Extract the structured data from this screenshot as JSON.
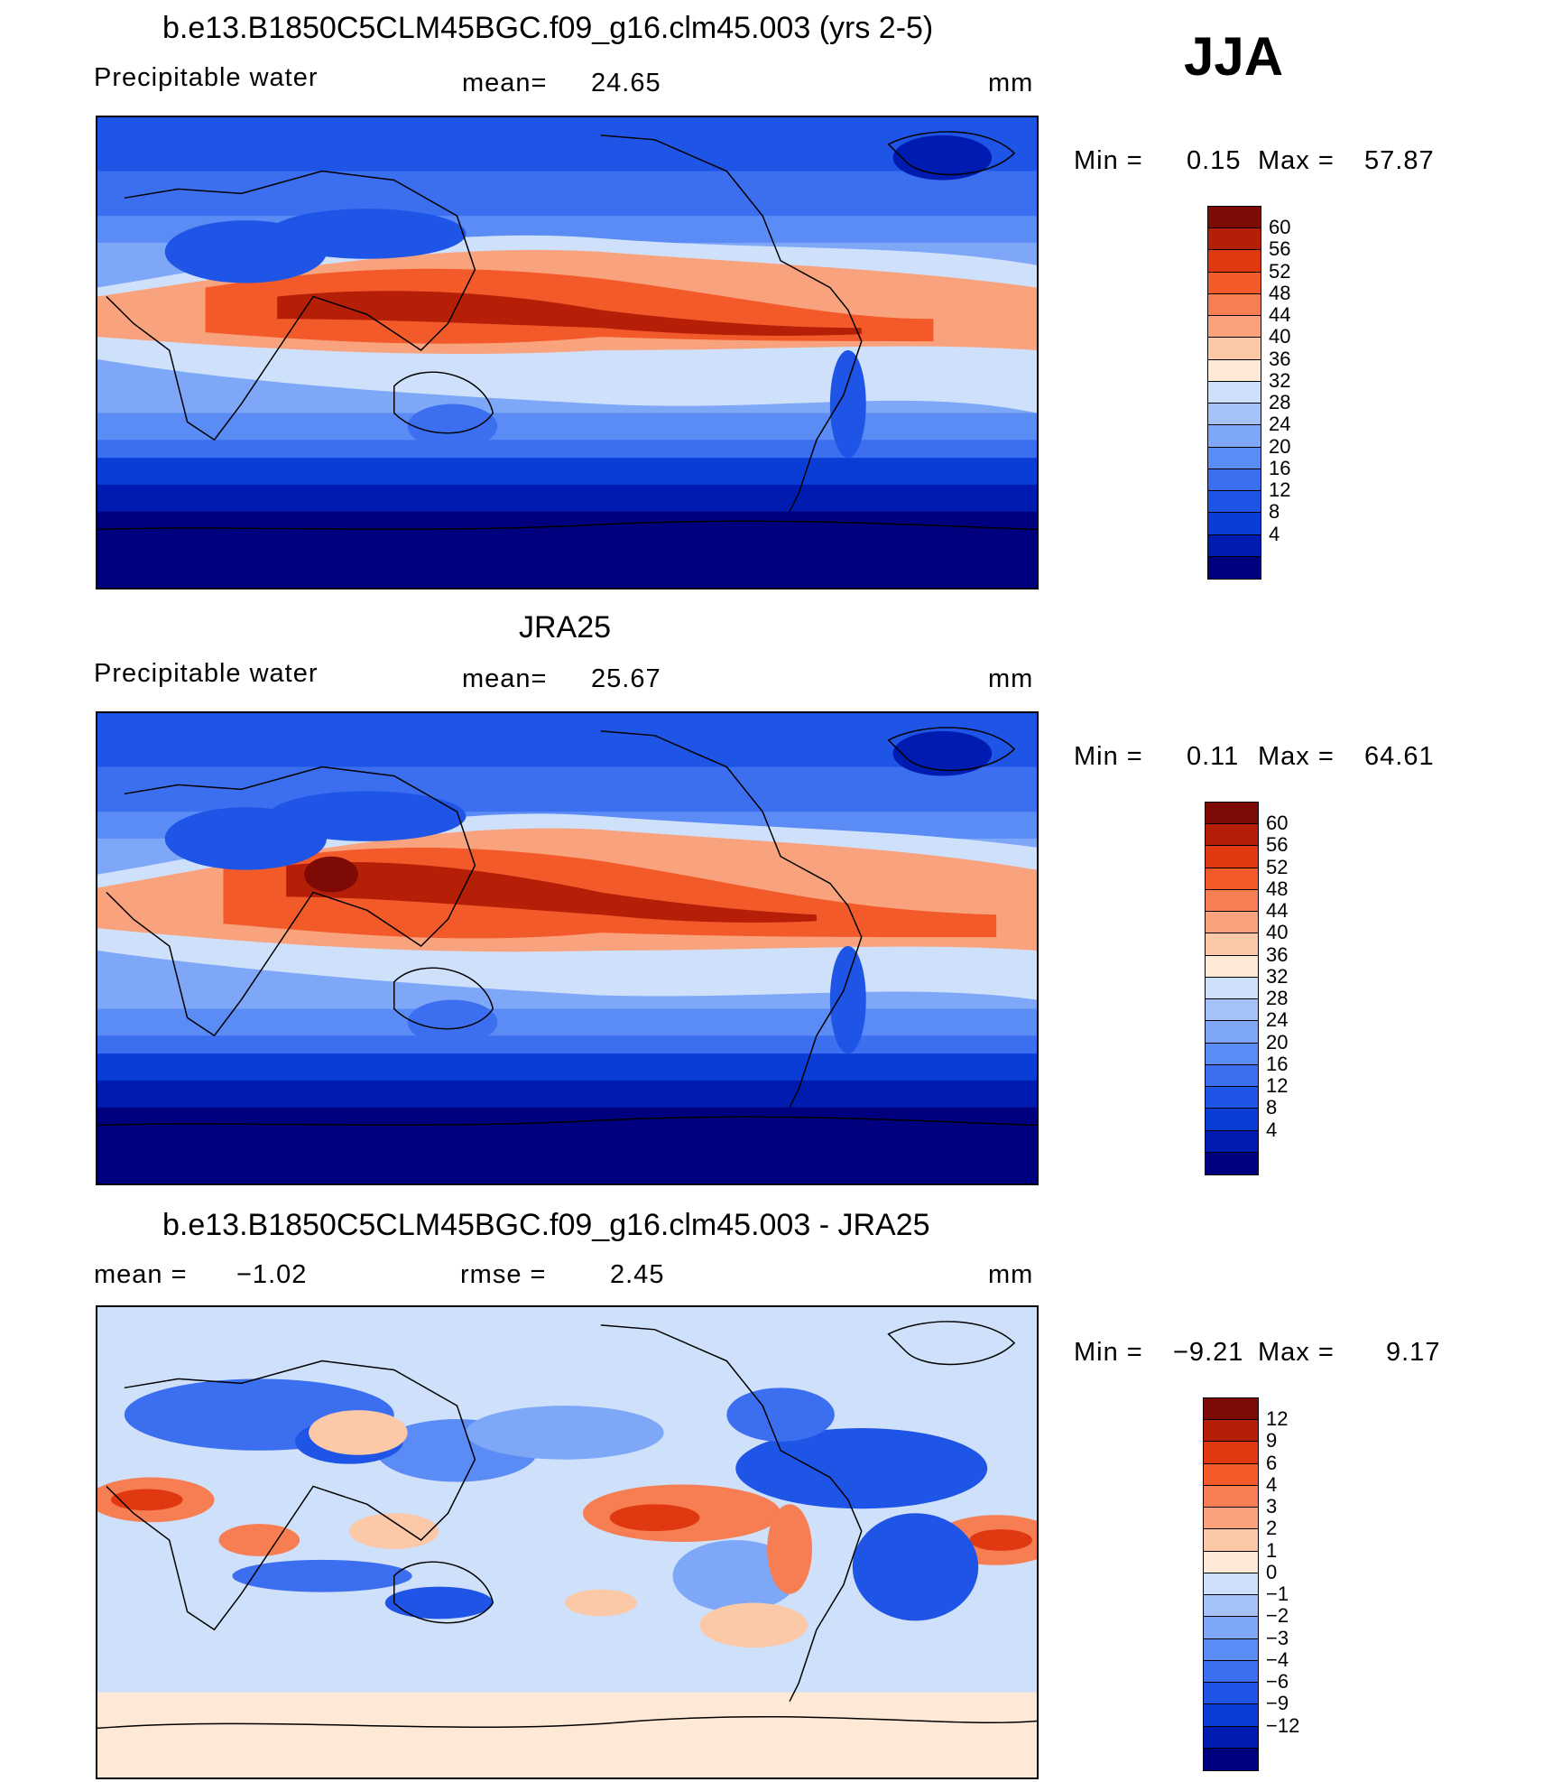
{
  "season": "JJA",
  "units_label": "mm",
  "colors": {
    "full": [
      "#00007e",
      "#001cb0",
      "#0a3dd6",
      "#1f55e6",
      "#3b6ff0",
      "#5b8cf5",
      "#7fa7f7",
      "#a4c2f8",
      "#cfe0fb",
      "#fde9d6",
      "#fbc8a8",
      "#f9a37e",
      "#f67e52",
      "#f25a2a",
      "#e03912",
      "#b51f08",
      "#7e0a05"
    ],
    "diff": [
      "#00007e",
      "#001cb0",
      "#0a3dd6",
      "#1f55e6",
      "#3b6ff0",
      "#5b8cf5",
      "#7fa7f7",
      "#a4c2f8",
      "#cfe0fb",
      "#fde9d6",
      "#fbc8a8",
      "#f9a37e",
      "#f67e52",
      "#f25a2a",
      "#e03912",
      "#b51f08",
      "#7e0a05"
    ]
  },
  "panels": [
    {
      "title": "b.e13.B1850C5CLM45BGC.f09_g16.clm45.003 (yrs 2-5)",
      "variable": "Precipitable  water",
      "stat_label": "mean=",
      "stat_value": "24.65",
      "units": "mm",
      "min_label": "Min  =",
      "min_value": "0.15",
      "max_label": "Max  =",
      "max_value": "57.87",
      "levels": [
        "60",
        "56",
        "52",
        "48",
        "44",
        "40",
        "36",
        "32",
        "28",
        "24",
        "20",
        "16",
        "12",
        "8",
        "4"
      ],
      "scale": "full"
    },
    {
      "title": "JRA25",
      "variable": "Precipitable  water",
      "stat_label": "mean=",
      "stat_value": "25.67",
      "units": "mm",
      "min_label": "Min  =",
      "min_value": "0.11",
      "max_label": "Max  =",
      "max_value": "64.61",
      "levels": [
        "60",
        "56",
        "52",
        "48",
        "44",
        "40",
        "36",
        "32",
        "28",
        "24",
        "20",
        "16",
        "12",
        "8",
        "4"
      ],
      "scale": "full"
    },
    {
      "title": "b.e13.B1850C5CLM45BGC.f09_g16.clm45.003 - JRA25",
      "variable": "mean  =",
      "variable_value": "−1.02",
      "stat_label": "rmse  =",
      "stat_value": "2.45",
      "units": "mm",
      "min_label": "Min  =",
      "min_value": "−9.21",
      "max_label": "Max  =",
      "max_value": "9.17",
      "levels": [
        "12",
        "9",
        "6",
        "4",
        "3",
        "2",
        "1",
        "0",
        "−1",
        "−2",
        "−3",
        "−4",
        "−6",
        "−9",
        "−12"
      ],
      "scale": "diff"
    }
  ]
}
